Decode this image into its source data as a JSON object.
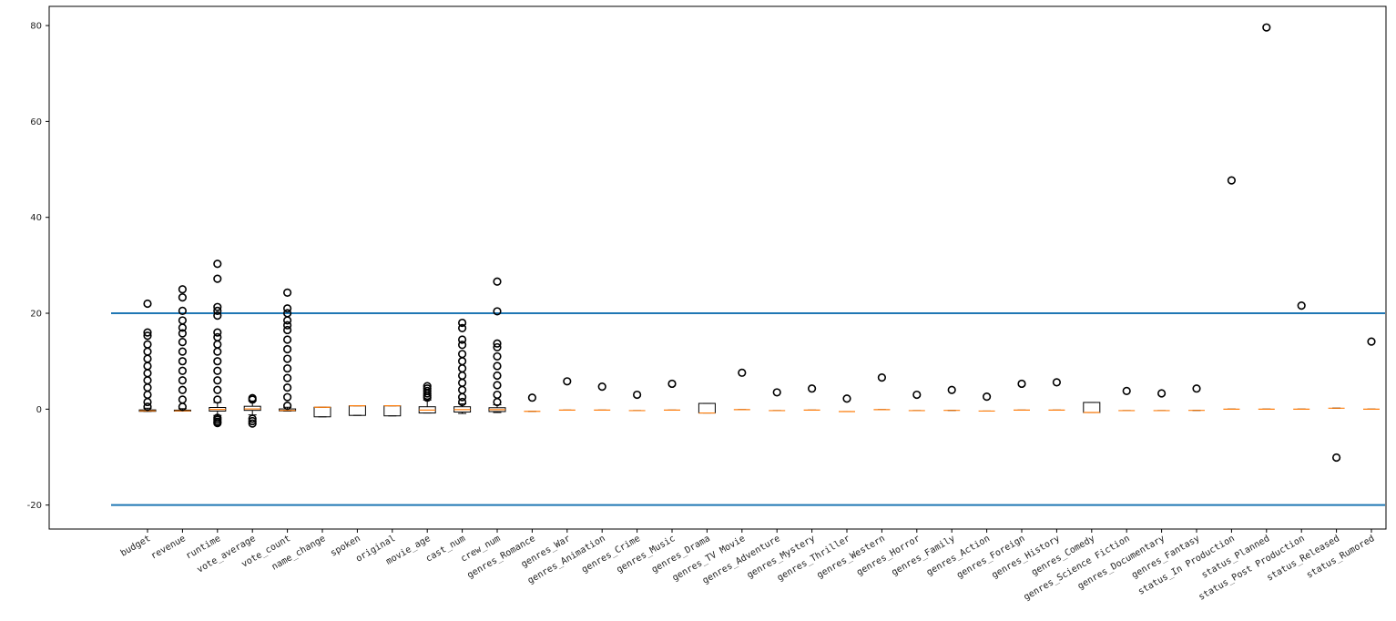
{
  "chart_data": {
    "type": "boxplot",
    "title": "",
    "xlabel": "",
    "ylabel": "",
    "ylim": [
      -25,
      84
    ],
    "yticks": [
      -20,
      0,
      20,
      40,
      60,
      80
    ],
    "grid": false,
    "legend": "none",
    "reference_lines": [
      {
        "y": 20,
        "color": "#1f77b4"
      },
      {
        "y": -20,
        "color": "#1f77b4"
      }
    ],
    "colors": {
      "box": "#000000",
      "median": "#ff7f0e",
      "flier": "#000000",
      "reference": "#1f77b4"
    },
    "series": [
      {
        "name": "budget",
        "q1": -0.45,
        "median": -0.35,
        "q3": -0.15,
        "whisker_low": -0.45,
        "whisker_high": 0.2,
        "fliers": [
          22.0,
          16.0,
          15.3,
          13.5,
          12.0,
          10.5,
          9.0,
          7.5,
          6.0,
          4.5,
          3.0,
          1.5,
          0.5
        ]
      },
      {
        "name": "revenue",
        "q1": -0.4,
        "median": -0.35,
        "q3": -0.2,
        "whisker_low": -0.4,
        "whisker_high": 0.1,
        "fliers": [
          25.0,
          23.3,
          20.5,
          18.5,
          17.0,
          15.8,
          14.0,
          12.0,
          10.0,
          8.0,
          6.0,
          4.0,
          2.0,
          0.5
        ]
      },
      {
        "name": "runtime",
        "q1": -0.4,
        "median": -0.05,
        "q3": 0.35,
        "whisker_low": -1.3,
        "whisker_high": 1.4,
        "fliers": [
          30.3,
          27.2,
          21.3,
          20.5,
          19.5,
          16.0,
          15.0,
          13.5,
          12.0,
          10.0,
          8.0,
          6.0,
          4.0,
          2.0,
          -1.8,
          -2.2,
          -2.6,
          -2.9
        ]
      },
      {
        "name": "vote_average",
        "q1": -0.25,
        "median": 0.05,
        "q3": 0.6,
        "whisker_low": -1.2,
        "whisker_high": 1.7,
        "fliers": [
          2.3,
          2.0,
          -2.0,
          -2.5,
          -3.0
        ]
      },
      {
        "name": "vote_count",
        "q1": -0.35,
        "median": -0.25,
        "q3": 0.05,
        "whisker_low": -0.4,
        "whisker_high": 0.4,
        "fliers": [
          24.3,
          21.0,
          20.0,
          18.5,
          17.5,
          16.5,
          14.5,
          12.5,
          10.5,
          8.5,
          6.5,
          4.5,
          2.5,
          0.7
        ]
      },
      {
        "name": "name_change",
        "q1": -1.6,
        "median": 0.4,
        "q3": 0.4,
        "whisker_low": -1.6,
        "whisker_high": 0.4,
        "fliers": []
      },
      {
        "name": "spoken",
        "q1": -1.3,
        "median": 0.7,
        "q3": 0.7,
        "whisker_low": -1.3,
        "whisker_high": 0.7,
        "fliers": []
      },
      {
        "name": "original",
        "q1": -1.4,
        "median": 0.7,
        "q3": 0.7,
        "whisker_low": -1.4,
        "whisker_high": 0.7,
        "fliers": []
      },
      {
        "name": "movie_age",
        "q1": -0.8,
        "median": -0.2,
        "q3": 0.5,
        "whisker_low": -0.8,
        "whisker_high": 1.9,
        "fliers": [
          4.8,
          4.3,
          3.8,
          3.3,
          2.8,
          2.4
        ]
      },
      {
        "name": "cast_num",
        "q1": -0.6,
        "median": -0.1,
        "q3": 0.5,
        "whisker_low": -0.9,
        "whisker_high": 1.1,
        "fliers": [
          18.0,
          16.9,
          14.5,
          13.4,
          11.5,
          10.0,
          8.5,
          7.0,
          5.5,
          4.0,
          2.5,
          1.5
        ]
      },
      {
        "name": "crew_num",
        "q1": -0.5,
        "median": -0.1,
        "q3": 0.3,
        "whisker_low": -0.7,
        "whisker_high": 0.9,
        "fliers": [
          26.6,
          20.4,
          13.7,
          12.9,
          11.0,
          9.0,
          7.0,
          5.0,
          3.0,
          1.5
        ]
      },
      {
        "name": "genres_Romance",
        "q1": -0.45,
        "median": -0.45,
        "q3": -0.45,
        "whisker_low": -0.45,
        "whisker_high": -0.45,
        "fliers": [
          2.4
        ]
      },
      {
        "name": "genres_War",
        "q1": -0.2,
        "median": -0.2,
        "q3": -0.2,
        "whisker_low": -0.2,
        "whisker_high": -0.2,
        "fliers": [
          5.8
        ]
      },
      {
        "name": "genres_Animation",
        "q1": -0.2,
        "median": -0.2,
        "q3": -0.2,
        "whisker_low": -0.2,
        "whisker_high": -0.2,
        "fliers": [
          4.7
        ]
      },
      {
        "name": "genres_Crime",
        "q1": -0.3,
        "median": -0.3,
        "q3": -0.3,
        "whisker_low": -0.3,
        "whisker_high": -0.3,
        "fliers": [
          3.0
        ]
      },
      {
        "name": "genres_Music",
        "q1": -0.2,
        "median": -0.2,
        "q3": -0.2,
        "whisker_low": -0.2,
        "whisker_high": -0.2,
        "fliers": [
          5.3
        ]
      },
      {
        "name": "genres_Drama",
        "q1": -0.8,
        "median": -0.8,
        "q3": 1.2,
        "whisker_low": -0.8,
        "whisker_high": 1.2,
        "fliers": []
      },
      {
        "name": "genres_TV Movie",
        "q1": -0.1,
        "median": -0.1,
        "q3": -0.1,
        "whisker_low": -0.1,
        "whisker_high": -0.1,
        "fliers": [
          7.6
        ]
      },
      {
        "name": "genres_Adventure",
        "q1": -0.3,
        "median": -0.3,
        "q3": -0.3,
        "whisker_low": -0.3,
        "whisker_high": -0.3,
        "fliers": [
          3.5
        ]
      },
      {
        "name": "genres_Mystery",
        "q1": -0.2,
        "median": -0.2,
        "q3": -0.2,
        "whisker_low": -0.2,
        "whisker_high": -0.2,
        "fliers": [
          4.3
        ]
      },
      {
        "name": "genres_Thriller",
        "q1": -0.5,
        "median": -0.5,
        "q3": -0.5,
        "whisker_low": -0.5,
        "whisker_high": -0.5,
        "fliers": [
          2.2
        ]
      },
      {
        "name": "genres_Western",
        "q1": -0.1,
        "median": -0.1,
        "q3": -0.1,
        "whisker_low": -0.1,
        "whisker_high": -0.1,
        "fliers": [
          6.6
        ]
      },
      {
        "name": "genres_Horror",
        "q1": -0.3,
        "median": -0.3,
        "q3": -0.3,
        "whisker_low": -0.3,
        "whisker_high": -0.3,
        "fliers": [
          3.0
        ]
      },
      {
        "name": "genres_Family",
        "q1": -0.25,
        "median": -0.25,
        "q3": -0.25,
        "whisker_low": -0.25,
        "whisker_high": -0.25,
        "fliers": [
          4.0
        ]
      },
      {
        "name": "genres_Action",
        "q1": -0.4,
        "median": -0.4,
        "q3": -0.4,
        "whisker_low": -0.4,
        "whisker_high": -0.4,
        "fliers": [
          2.6
        ]
      },
      {
        "name": "genres_Foreign",
        "q1": -0.2,
        "median": -0.2,
        "q3": -0.2,
        "whisker_low": -0.2,
        "whisker_high": -0.2,
        "fliers": [
          5.3
        ]
      },
      {
        "name": "genres_History",
        "q1": -0.2,
        "median": -0.2,
        "q3": -0.2,
        "whisker_low": -0.2,
        "whisker_high": -0.2,
        "fliers": [
          5.6
        ]
      },
      {
        "name": "genres_Comedy",
        "q1": -0.7,
        "median": -0.7,
        "q3": 1.4,
        "whisker_low": -0.7,
        "whisker_high": 1.4,
        "fliers": []
      },
      {
        "name": "genres_Science Fiction",
        "q1": -0.3,
        "median": -0.3,
        "q3": -0.3,
        "whisker_low": -0.3,
        "whisker_high": -0.3,
        "fliers": [
          3.8
        ]
      },
      {
        "name": "genres_Documentary",
        "q1": -0.3,
        "median": -0.3,
        "q3": -0.3,
        "whisker_low": -0.3,
        "whisker_high": -0.3,
        "fliers": [
          3.3
        ]
      },
      {
        "name": "genres_Fantasy",
        "q1": -0.25,
        "median": -0.25,
        "q3": -0.25,
        "whisker_low": -0.25,
        "whisker_high": -0.25,
        "fliers": [
          4.3
        ]
      },
      {
        "name": "status_In Production",
        "q1": 0.0,
        "median": 0.0,
        "q3": 0.0,
        "whisker_low": 0.0,
        "whisker_high": 0.0,
        "fliers": [
          47.7
        ]
      },
      {
        "name": "status_Planned",
        "q1": 0.0,
        "median": 0.0,
        "q3": 0.0,
        "whisker_low": 0.0,
        "whisker_high": 0.0,
        "fliers": [
          79.6
        ]
      },
      {
        "name": "status_Post Production",
        "q1": 0.0,
        "median": 0.0,
        "q3": 0.0,
        "whisker_low": 0.0,
        "whisker_high": 0.0,
        "fliers": [
          21.6
        ]
      },
      {
        "name": "status_Released",
        "q1": 0.2,
        "median": 0.2,
        "q3": 0.2,
        "whisker_low": 0.2,
        "whisker_high": 0.2,
        "fliers": [
          -10.1
        ]
      },
      {
        "name": "status_Rumored",
        "q1": 0.0,
        "median": 0.0,
        "q3": 0.0,
        "whisker_low": 0.0,
        "whisker_high": 0.0,
        "fliers": [
          14.1
        ]
      }
    ]
  }
}
